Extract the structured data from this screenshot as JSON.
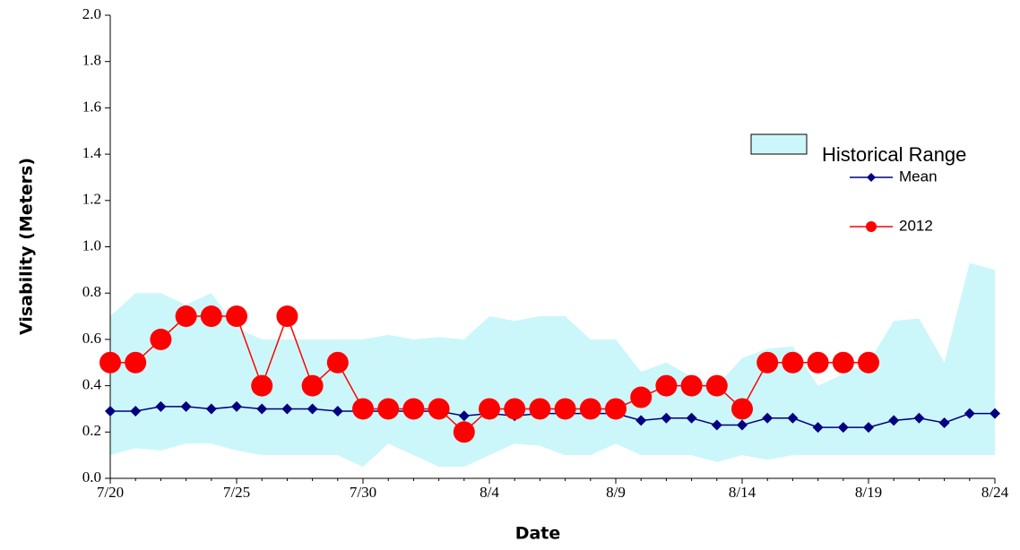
{
  "chart_data": {
    "type": "line",
    "y_label": "Visability (Meters)",
    "x_label": "Date",
    "categories": [
      "7/20",
      null,
      null,
      null,
      null,
      "7/25",
      null,
      null,
      null,
      null,
      "7/30",
      null,
      null,
      null,
      null,
      "8/4",
      null,
      null,
      null,
      null,
      "8/9",
      null,
      null,
      null,
      null,
      "8/14",
      null,
      null,
      null,
      null,
      "8/19",
      null,
      null,
      null,
      null,
      "8/24"
    ],
    "ylim": [
      0,
      2
    ],
    "yticks": [
      {
        "value": 0,
        "label": "0.0"
      },
      0.2,
      0.4,
      0.6,
      0.8,
      {
        "value": 1,
        "label": "1.0"
      },
      1.2,
      1.4,
      1.6,
      1.8,
      {
        "value": 2,
        "label": "2.0"
      }
    ],
    "series": [
      {
        "name": "Historical Range",
        "type": "range",
        "color": "#ccf7fa",
        "high": [
          0.7,
          0.8,
          0.8,
          0.75,
          0.8,
          0.65,
          0.6,
          0.6,
          0.6,
          0.6,
          0.6,
          0.62,
          0.6,
          0.61,
          0.6,
          0.7,
          0.68,
          0.7,
          0.7,
          0.6,
          0.6,
          0.46,
          0.5,
          0.44,
          0.4,
          0.52,
          0.56,
          0.57,
          0.4,
          0.45,
          0.5,
          0.68,
          0.69,
          0.5,
          0.93,
          0.9
        ],
        "low": [
          0.1,
          0.13,
          0.12,
          0.15,
          0.15,
          0.12,
          0.1,
          0.1,
          0.1,
          0.1,
          0.05,
          0.15,
          0.1,
          0.05,
          0.05,
          0.1,
          0.15,
          0.14,
          0.1,
          0.1,
          0.15,
          0.1,
          0.1,
          0.1,
          0.07,
          0.1,
          0.08,
          0.1,
          0.1,
          0.1,
          0.1,
          0.1,
          0.1,
          0.1,
          0.1,
          0.1
        ]
      },
      {
        "name": "Mean",
        "marker": "diamond",
        "color": "#000080",
        "values": [
          0.29,
          0.29,
          0.31,
          0.31,
          0.3,
          0.31,
          0.3,
          0.3,
          0.3,
          0.29,
          0.29,
          0.29,
          0.29,
          0.29,
          0.27,
          0.28,
          0.27,
          0.28,
          0.28,
          0.28,
          0.28,
          0.25,
          0.26,
          0.26,
          0.23,
          0.23,
          0.26,
          0.26,
          0.22,
          0.22,
          0.22,
          0.25,
          0.26,
          0.24,
          0.28,
          0.28
        ]
      },
      {
        "name": "2012",
        "marker": "circle",
        "color": "#ff0000",
        "values": [
          0.5,
          0.5,
          0.6,
          0.7,
          0.7,
          0.7,
          0.4,
          0.7,
          0.4,
          0.5,
          0.3,
          0.3,
          0.3,
          0.3,
          0.2,
          0.3,
          0.3,
          0.3,
          0.3,
          0.3,
          0.3,
          0.35,
          0.4,
          0.4,
          0.4,
          0.3,
          0.5,
          0.5,
          0.5,
          0.5,
          0.5,
          null,
          null,
          null,
          null,
          null
        ]
      }
    ]
  }
}
